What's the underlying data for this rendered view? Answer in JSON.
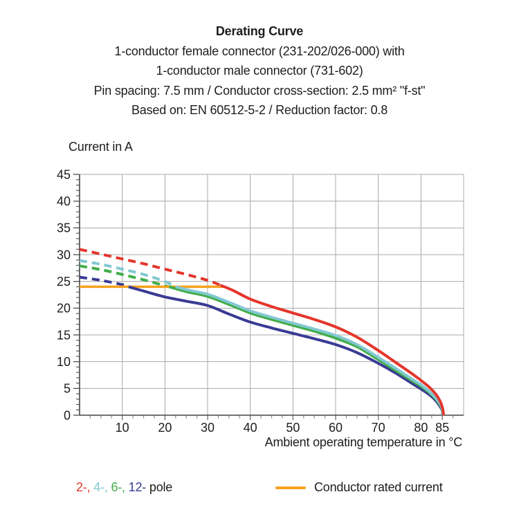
{
  "header": {
    "title": "Derating Curve",
    "subtitle_lines": [
      "1-conductor female connector (231-202/026-000) with",
      "1-conductor male connector (731-602)",
      "Pin spacing: 7.5 mm / Conductor cross-section: 2.5 mm² \"f-st\"",
      "Based on: EN 60512-5-2 / Reduction factor: 0.8"
    ]
  },
  "chart_data": {
    "type": "line",
    "title": "Derating Curve",
    "xlabel": "Ambient operating temperature in °C",
    "ylabel": "Current in A",
    "xlim": [
      0,
      90
    ],
    "ylim": [
      0,
      45
    ],
    "x_major_ticks": [
      10,
      20,
      30,
      40,
      50,
      60,
      70,
      80,
      85
    ],
    "y_major_ticks": [
      0,
      5,
      10,
      15,
      20,
      25,
      30,
      35,
      40,
      45
    ],
    "x_gridlines": [
      10,
      20,
      30,
      40,
      50,
      60,
      70,
      80
    ],
    "y_gridlines": [
      5,
      10,
      15,
      20,
      25,
      30,
      35,
      40
    ],
    "x_minor_step": 2.5,
    "y_minor_step": 1,
    "grid": true,
    "legend_position": "bottom",
    "colors": {
      "grid": "#a8a8a8",
      "axis": "#454545",
      "tick": "#8a8a8a",
      "text": "#1d1d1b"
    },
    "rated_line": {
      "name": "Conductor rated current",
      "color": "#f5a11e",
      "value_A": 24,
      "points": [
        [
          0,
          24
        ],
        [
          33.8,
          24
        ]
      ]
    },
    "series": [
      {
        "name": "12-pole",
        "color": "#393b94",
        "dashed_points": [
          [
            0,
            25.8
          ],
          [
            5,
            25.2
          ],
          [
            10,
            24.4
          ],
          [
            11.5,
            24
          ]
        ],
        "solid_points": [
          [
            11.5,
            24
          ],
          [
            15,
            23.2
          ],
          [
            20,
            22.1
          ],
          [
            25,
            21.3
          ],
          [
            30,
            20.5
          ],
          [
            35,
            18.9
          ],
          [
            40,
            17.4
          ],
          [
            45,
            16.3
          ],
          [
            50,
            15.3
          ],
          [
            55,
            14.3
          ],
          [
            60,
            13.2
          ],
          [
            65,
            11.7
          ],
          [
            70,
            9.7
          ],
          [
            74,
            7.9
          ],
          [
            78,
            5.9
          ],
          [
            80,
            4.9
          ],
          [
            82,
            3.8
          ],
          [
            83.5,
            2.7
          ],
          [
            84.5,
            1.6
          ],
          [
            85,
            0.8
          ],
          [
            85.05,
            0
          ]
        ]
      },
      {
        "name": "6-pole",
        "color": "#41ad49",
        "dashed_points": [
          [
            0,
            27.9
          ],
          [
            5,
            27.2
          ],
          [
            10,
            26.3
          ],
          [
            15,
            25.3
          ],
          [
            20,
            24.2
          ],
          [
            21,
            24
          ]
        ],
        "solid_points": [
          [
            21,
            24
          ],
          [
            25,
            23.1
          ],
          [
            30,
            22.2
          ],
          [
            35,
            20.7
          ],
          [
            40,
            19.1
          ],
          [
            45,
            17.9
          ],
          [
            50,
            16.8
          ],
          [
            55,
            15.7
          ],
          [
            60,
            14.4
          ],
          [
            65,
            12.8
          ],
          [
            70,
            10.4
          ],
          [
            74,
            8.4
          ],
          [
            78,
            6.4
          ],
          [
            80,
            5.4
          ],
          [
            82,
            4.2
          ],
          [
            83.5,
            3.0
          ],
          [
            84.5,
            1.9
          ],
          [
            85,
            1.0
          ],
          [
            85.1,
            0
          ]
        ]
      },
      {
        "name": "4-pole",
        "color": "#82c8d2",
        "dashed_points": [
          [
            0,
            28.9
          ],
          [
            5,
            28.2
          ],
          [
            10,
            27.3
          ],
          [
            15,
            26.3
          ],
          [
            20,
            25.0
          ],
          [
            22.5,
            24
          ]
        ],
        "solid_points": [
          [
            22.5,
            24
          ],
          [
            26,
            23.3
          ],
          [
            30,
            22.6
          ],
          [
            35,
            21.1
          ],
          [
            40,
            19.5
          ],
          [
            45,
            18.3
          ],
          [
            50,
            17.2
          ],
          [
            55,
            16.1
          ],
          [
            60,
            14.9
          ],
          [
            65,
            13.2
          ],
          [
            70,
            10.8
          ],
          [
            74,
            8.8
          ],
          [
            78,
            6.7
          ],
          [
            80,
            5.7
          ],
          [
            82,
            4.4
          ],
          [
            83.5,
            3.2
          ],
          [
            84.5,
            2.1
          ],
          [
            85,
            1.1
          ],
          [
            85.15,
            0
          ]
        ]
      },
      {
        "name": "2-pole",
        "color": "#e5352b",
        "dashed_points": [
          [
            0,
            31
          ],
          [
            5,
            30.1
          ],
          [
            10,
            29.2
          ],
          [
            15,
            28.3
          ],
          [
            20,
            27.3
          ],
          [
            25,
            26.3
          ],
          [
            30,
            25.2
          ],
          [
            33,
            24.3
          ]
        ],
        "solid_points": [
          [
            33,
            24.3
          ],
          [
            36,
            23.3
          ],
          [
            40,
            21.7
          ],
          [
            45,
            20.3
          ],
          [
            50,
            19.1
          ],
          [
            55,
            17.9
          ],
          [
            60,
            16.5
          ],
          [
            65,
            14.6
          ],
          [
            70,
            12.1
          ],
          [
            74,
            9.9
          ],
          [
            78,
            7.7
          ],
          [
            80,
            6.5
          ],
          [
            82,
            5.2
          ],
          [
            83.5,
            3.9
          ],
          [
            84.5,
            2.6
          ],
          [
            85.1,
            1.2
          ],
          [
            85.3,
            0
          ]
        ]
      }
    ]
  },
  "legend": {
    "pole_items": [
      {
        "label": "2-,",
        "color": "#e5352b"
      },
      {
        "label": "4-,",
        "color": "#82c8d2"
      },
      {
        "label": "6-,",
        "color": "#41ad49"
      },
      {
        "label": "12-",
        "color": "#393b94"
      }
    ],
    "suffix": " pole",
    "rated": {
      "label": "Conductor rated current",
      "color": "#f5a11e"
    }
  }
}
